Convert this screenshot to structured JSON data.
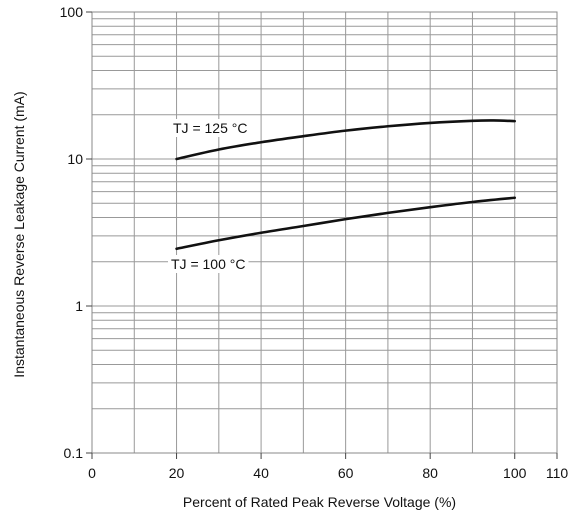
{
  "chart_data": {
    "type": "line",
    "xlabel": "Percent of Rated Peak Reverse Voltage (%)",
    "ylabel": "Instantaneous Reverse Leakage Current (mA)",
    "xlim": [
      0,
      110
    ],
    "ylim": [
      0.1,
      100
    ],
    "yscale": "log",
    "grid": true,
    "x_ticks": [
      0,
      20,
      40,
      60,
      80,
      100,
      110
    ],
    "x_tick_labels": [
      "0",
      "20",
      "40",
      "60",
      "80",
      "100",
      "110"
    ],
    "y_ticks": [
      0.1,
      1,
      10,
      100
    ],
    "y_tick_labels": [
      "0.1",
      "1",
      "10",
      "100"
    ],
    "series": [
      {
        "name": "TJ = 125 °C",
        "x": [
          20,
          30,
          40,
          50,
          60,
          70,
          80,
          90,
          95,
          100
        ],
        "y": [
          10.0,
          11.6,
          13.0,
          14.3,
          15.6,
          16.7,
          17.6,
          18.2,
          18.3,
          18.1
        ]
      },
      {
        "name": "TJ = 100 °C",
        "x": [
          20,
          30,
          40,
          50,
          60,
          70,
          80,
          90,
          100
        ],
        "y": [
          2.45,
          2.8,
          3.15,
          3.5,
          3.9,
          4.3,
          4.7,
          5.1,
          5.45
        ]
      }
    ],
    "annotations": [
      {
        "text": "TJ = 125 °C",
        "series": 0
      },
      {
        "text": "TJ = 100 °C",
        "series": 1
      }
    ]
  }
}
